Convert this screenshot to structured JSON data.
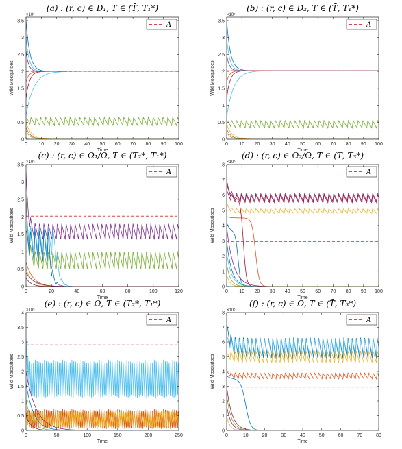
{
  "figure": {
    "series_palette": [
      "#0072bd",
      "#d95319",
      "#edb120",
      "#7e2f8e",
      "#77ac30",
      "#4dbeee",
      "#a2142f"
    ],
    "threshold_color": "#e04040"
  },
  "chart_data": [
    {
      "id": "a",
      "type": "line",
      "title": "(a) : (r, c) ∈ D₁, T ∈ (T̄, T₁*)",
      "xlabel": "Time",
      "ylabel": "Wild Mosquitoes",
      "y_exponent": "×10⁵",
      "xlim": [
        0,
        100
      ],
      "ylim": [
        0,
        3.6
      ],
      "xticks": [
        0,
        10,
        20,
        30,
        40,
        50,
        60,
        70,
        80,
        90,
        100
      ],
      "yticks": [
        0,
        0.5,
        1,
        1.5,
        2,
        2.5,
        3,
        3.5
      ],
      "xtick_labels": [
        "0",
        "10",
        "20",
        "30",
        "40",
        "50",
        "60",
        "70",
        "80",
        "90",
        "100"
      ],
      "ytick_labels": [
        "0",
        "0.5",
        "1",
        "1.5",
        "2",
        "2.5",
        "3",
        "3.5"
      ],
      "grid": false,
      "legend": {
        "position": "top-right",
        "entries": [
          "A"
        ]
      },
      "threshold": 2.0,
      "series": [
        {
          "kind": "monotone",
          "start": 3.5,
          "end": 2.0,
          "rate": 0.4,
          "color": 0
        },
        {
          "kind": "monotone",
          "start": 3.0,
          "end": 2.0,
          "rate": 0.5,
          "color": 5
        },
        {
          "kind": "monotone",
          "start": 2.6,
          "end": 2.0,
          "rate": 0.6,
          "color": 3
        },
        {
          "kind": "monotone",
          "start": 1.7,
          "end": 2.0,
          "rate": 0.5,
          "color": 1
        },
        {
          "kind": "monotone",
          "start": 1.2,
          "end": 2.0,
          "rate": 0.45,
          "color": 6
        },
        {
          "kind": "monotone",
          "start": 0.7,
          "end": 2.0,
          "rate": 0.2,
          "color": 5
        },
        {
          "kind": "monotone",
          "start": 0.5,
          "end": 0.0,
          "rate": 0.3,
          "color": 2
        },
        {
          "kind": "monotone",
          "start": 0.35,
          "end": 0.0,
          "rate": 0.35,
          "color": 1
        },
        {
          "kind": "monotone",
          "start": 0.25,
          "end": 0.0,
          "rate": 0.4,
          "color": 4
        },
        {
          "kind": "oscillation",
          "start": 0.6,
          "low": 0.4,
          "high": 0.65,
          "period": 3.2,
          "color": 4
        }
      ]
    },
    {
      "id": "b",
      "type": "line",
      "title": "(b) : (r, c) ∈ D₂, T ∈ (T̄, T₁*)",
      "xlabel": "Time",
      "ylabel": "Wild Mosquitoes",
      "y_exponent": "×10⁵",
      "xlim": [
        0,
        100
      ],
      "ylim": [
        0,
        3.6
      ],
      "xticks": [
        0,
        10,
        20,
        30,
        40,
        50,
        60,
        70,
        80,
        90,
        100
      ],
      "yticks": [
        0,
        0.5,
        1,
        1.5,
        2,
        2.5,
        3,
        3.5
      ],
      "xtick_labels": [
        "0",
        "10",
        "20",
        "30",
        "40",
        "50",
        "60",
        "70",
        "80",
        "90",
        "100"
      ],
      "ytick_labels": [
        "0",
        "0.5",
        "1",
        "1.5",
        "2",
        "2.5",
        "3",
        "3.5"
      ],
      "grid": false,
      "legend": {
        "position": "top-right",
        "entries": [
          "A"
        ]
      },
      "threshold": 2.02,
      "series": [
        {
          "kind": "monotone",
          "start": 3.5,
          "end": 2.02,
          "rate": 0.4,
          "color": 0
        },
        {
          "kind": "monotone",
          "start": 3.0,
          "end": 2.02,
          "rate": 0.5,
          "color": 5
        },
        {
          "kind": "monotone",
          "start": 2.5,
          "end": 2.02,
          "rate": 0.6,
          "color": 3
        },
        {
          "kind": "monotone",
          "start": 1.7,
          "end": 2.02,
          "rate": 0.5,
          "color": 1
        },
        {
          "kind": "monotone",
          "start": 1.2,
          "end": 2.02,
          "rate": 0.45,
          "color": 6
        },
        {
          "kind": "monotone",
          "start": 0.65,
          "end": 2.02,
          "rate": 0.22,
          "color": 5
        },
        {
          "kind": "monotone",
          "start": 0.45,
          "end": 0.0,
          "rate": 0.3,
          "color": 2
        },
        {
          "kind": "monotone",
          "start": 0.3,
          "end": 0.0,
          "rate": 0.35,
          "color": 1
        },
        {
          "kind": "monotone",
          "start": 0.2,
          "end": 0.0,
          "rate": 0.4,
          "color": 4
        },
        {
          "kind": "oscillation",
          "start": 0.55,
          "low": 0.33,
          "high": 0.55,
          "period": 3.2,
          "color": 4
        }
      ]
    },
    {
      "id": "c",
      "type": "line",
      "title": "(c) : (r, c) ∈ Ω₁/Ω, T ∈ (T₂*, T₁*)",
      "xlabel": "Time",
      "ylabel": "Wild Mosquitoes",
      "y_exponent": "×10⁵",
      "xlim": [
        0,
        120
      ],
      "ylim": [
        0,
        3.5
      ],
      "xticks": [
        0,
        20,
        40,
        60,
        80,
        100,
        120
      ],
      "yticks": [
        0,
        0.5,
        1,
        1.5,
        2,
        2.5,
        3,
        3.5
      ],
      "xtick_labels": [
        "0",
        "20",
        "40",
        "60",
        "80",
        "100",
        "120"
      ],
      "ytick_labels": [
        "0",
        "0.5",
        "1",
        "1.5",
        "2",
        "2.5",
        "3",
        "3.5"
      ],
      "grid": false,
      "legend": {
        "position": "top-right",
        "entries": [
          "A"
        ]
      },
      "threshold": 2.02,
      "series": [
        {
          "kind": "oscillation",
          "start": 3.3,
          "low": 1.35,
          "high": 1.8,
          "period": 3.5,
          "color": 3
        },
        {
          "kind": "oscillation",
          "start": 2.6,
          "low": 0.5,
          "high": 1.0,
          "period": 3.5,
          "color": 4
        },
        {
          "kind": "decayosc",
          "start": 2.2,
          "low": 0.9,
          "high": 1.7,
          "period": 3.5,
          "until": 23,
          "color": 5
        },
        {
          "kind": "decayosc",
          "start": 1.6,
          "low": 0.7,
          "high": 1.6,
          "period": 3.5,
          "until": 18,
          "color": 0
        },
        {
          "kind": "monotone",
          "start": 0.7,
          "end": 0.0,
          "rate": 0.18,
          "color": 1
        },
        {
          "kind": "monotone",
          "start": 0.5,
          "end": 0.0,
          "rate": 0.2,
          "color": 2
        },
        {
          "kind": "monotone",
          "start": 0.4,
          "end": 0.0,
          "rate": 0.15,
          "color": 3
        },
        {
          "kind": "monotone",
          "start": 0.25,
          "end": 0.0,
          "rate": 0.25,
          "color": 6
        }
      ]
    },
    {
      "id": "d",
      "type": "line",
      "title": "(d) : (r, c) ∈ Ω₂/Ω, T ∈ (T̄, T₃*)",
      "xlabel": "Time",
      "ylabel": "Wild Mosquitoes",
      "y_exponent": "×10⁵",
      "xlim": [
        0,
        100
      ],
      "ylim": [
        0,
        8
      ],
      "xticks": [
        0,
        10,
        20,
        30,
        40,
        50,
        60,
        70,
        80,
        90,
        100
      ],
      "yticks": [
        0,
        1,
        2,
        3,
        4,
        5,
        6,
        7,
        8
      ],
      "xtick_labels": [
        "0",
        "10",
        "20",
        "30",
        "40",
        "50",
        "60",
        "70",
        "80",
        "90",
        "100"
      ],
      "ytick_labels": [
        "0",
        "1",
        "2",
        "3",
        "4",
        "5",
        "6",
        "7",
        "8"
      ],
      "grid": false,
      "legend": {
        "position": "top-right",
        "entries": [
          "A"
        ]
      },
      "threshold": 2.95,
      "series": [
        {
          "kind": "oscillation",
          "start": 7.0,
          "low": 5.6,
          "high": 6.1,
          "period": 3.2,
          "color": 3
        },
        {
          "kind": "oscillation",
          "start": 6.3,
          "low": 5.5,
          "high": 6.0,
          "period": 3.2,
          "color": 6
        },
        {
          "kind": "oscillation",
          "start": 5.5,
          "low": 4.8,
          "high": 5.1,
          "period": 3.2,
          "color": 2
        },
        {
          "kind": "drop",
          "start": 4.6,
          "level": 4.5,
          "t0": 19,
          "width": 1.2,
          "color": 1
        },
        {
          "kind": "drop",
          "start": 6.8,
          "level": 5.8,
          "t0": 11,
          "width": 1.0,
          "color": 6
        },
        {
          "kind": "drop",
          "start": 4.2,
          "level": 3.6,
          "t0": 7.5,
          "width": 0.9,
          "color": 0
        },
        {
          "kind": "monotone",
          "start": 3.9,
          "end": 0.0,
          "rate": 0.22,
          "color": 3
        },
        {
          "kind": "monotone",
          "start": 3.0,
          "end": 0.0,
          "rate": 0.3,
          "color": 0
        },
        {
          "kind": "monotone",
          "start": 2.2,
          "end": 0.0,
          "rate": 0.3,
          "color": 5
        },
        {
          "kind": "monotone",
          "start": 1.5,
          "end": 0.0,
          "rate": 0.4,
          "color": 4
        },
        {
          "kind": "monotone",
          "start": 0.8,
          "end": 0.0,
          "rate": 0.5,
          "color": 2
        }
      ]
    },
    {
      "id": "e",
      "type": "line",
      "title": "(e) : (r, c) ∈ Ω, T ∈ (T₂*, T₁*)",
      "xlabel": "Time",
      "ylabel": "Wild Mosquitoes",
      "y_exponent": "×10⁵",
      "xlim": [
        0,
        250
      ],
      "ylim": [
        0,
        4
      ],
      "xticks": [
        0,
        50,
        100,
        150,
        200,
        250
      ],
      "yticks": [
        0,
        0.5,
        1,
        1.5,
        2,
        2.5,
        3,
        3.5,
        4
      ],
      "xtick_labels": [
        "0",
        "50",
        "100",
        "150",
        "200",
        "250"
      ],
      "ytick_labels": [
        "0",
        "0.5",
        "1",
        "1.5",
        "2",
        "2.5",
        "3",
        "3.5",
        "4"
      ],
      "grid": false,
      "legend": {
        "position": "top-right",
        "entries": [
          "A"
        ]
      },
      "threshold": 2.9,
      "series": [
        {
          "kind": "decayosc",
          "start": 3.1,
          "low": 1.1,
          "high": 2.4,
          "period": 3.0,
          "until": 250,
          "color": 5
        },
        {
          "kind": "oscillation",
          "start": 0.6,
          "low": 0.05,
          "high": 0.72,
          "period": 3.0,
          "color": 1
        },
        {
          "kind": "oscillation",
          "start": 0.4,
          "low": 0.1,
          "high": 0.65,
          "period": 3.4,
          "color": 2
        },
        {
          "kind": "monotone",
          "start": 2.0,
          "end": 0.0,
          "rate": 0.06,
          "color": 3
        },
        {
          "kind": "monotone",
          "start": 1.6,
          "end": 0.0,
          "rate": 0.08,
          "color": 0
        },
        {
          "kind": "monotone",
          "start": 1.0,
          "end": 0.0,
          "rate": 0.1,
          "color": 4
        },
        {
          "kind": "monotone",
          "start": 0.5,
          "end": 0.0,
          "rate": 0.12,
          "color": 6
        }
      ]
    },
    {
      "id": "f",
      "type": "line",
      "title": "(f) : (r, c) ∈ Ω, T ∈ (T̄, T₃*)",
      "xlabel": "Time",
      "ylabel": "Wild Mosquitoes",
      "y_exponent": "×10⁵",
      "xlim": [
        0,
        80
      ],
      "ylim": [
        0,
        8
      ],
      "xticks": [
        0,
        10,
        20,
        30,
        40,
        50,
        60,
        70,
        80
      ],
      "yticks": [
        0,
        1,
        2,
        3,
        4,
        5,
        6,
        7,
        8
      ],
      "xtick_labels": [
        "0",
        "10",
        "20",
        "30",
        "40",
        "50",
        "60",
        "70",
        "80"
      ],
      "ytick_labels": [
        "0",
        "1",
        "2",
        "3",
        "4",
        "5",
        "6",
        "7",
        "8"
      ],
      "grid": false,
      "legend": {
        "position": "top-right",
        "entries": [
          "A"
        ]
      },
      "threshold": 2.95,
      "series": [
        {
          "kind": "oscillation",
          "start": 7.3,
          "low": 4.9,
          "high": 6.3,
          "period": 2.2,
          "color": 0
        },
        {
          "kind": "oscillation",
          "start": 6.4,
          "low": 5.2,
          "high": 6.2,
          "period": 2.2,
          "color": 5
        },
        {
          "kind": "oscillation",
          "start": 4.0,
          "low": 3.5,
          "high": 3.9,
          "period": 2.2,
          "color": 1
        },
        {
          "kind": "oscillation",
          "start": 5.2,
          "low": 4.6,
          "high": 5.4,
          "period": 2.2,
          "color": 2
        },
        {
          "kind": "drop",
          "start": 3.7,
          "level": 3.5,
          "t0": 10,
          "width": 1.3,
          "color": 0
        },
        {
          "kind": "monotone",
          "start": 3.0,
          "end": 0.0,
          "rate": 0.35,
          "color": 6
        },
        {
          "kind": "monotone",
          "start": 2.4,
          "end": 0.0,
          "rate": 0.4,
          "color": 4
        },
        {
          "kind": "monotone",
          "start": 1.7,
          "end": 0.0,
          "rate": 0.45,
          "color": 3
        },
        {
          "kind": "monotone",
          "start": 1.0,
          "end": 0.0,
          "rate": 0.6,
          "color": 2
        }
      ]
    }
  ]
}
